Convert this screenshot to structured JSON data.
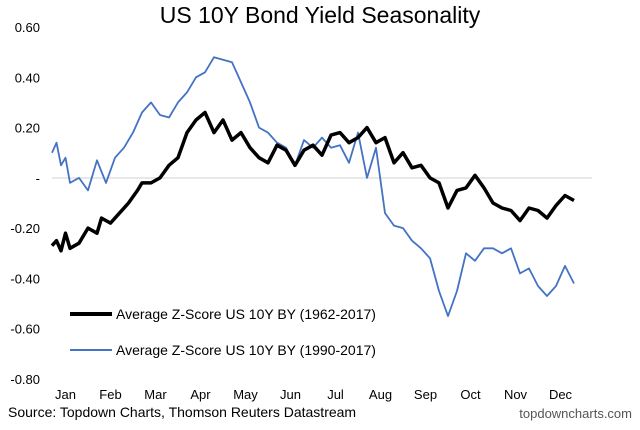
{
  "chart_data": {
    "type": "line",
    "title": "US 10Y Bond Yield Seasonality",
    "xlabel": "",
    "ylabel": "",
    "ylim": [
      -0.8,
      0.6
    ],
    "yticks": [
      {
        "value": 0.6,
        "label": "0.60"
      },
      {
        "value": 0.4,
        "label": "0.40"
      },
      {
        "value": 0.2,
        "label": "0.20"
      },
      {
        "value": 0.0,
        "label": "-"
      },
      {
        "value": -0.2,
        "label": "-0.20"
      },
      {
        "value": -0.4,
        "label": "-0.40"
      },
      {
        "value": -0.6,
        "label": "-0.60"
      },
      {
        "value": -0.8,
        "label": "-0.80"
      }
    ],
    "categories": [
      "Jan",
      "Feb",
      "Mar",
      "Apr",
      "May",
      "Jun",
      "Jul",
      "Aug",
      "Sep",
      "Oct",
      "Nov",
      "Dec"
    ],
    "legend_position": "bottom-left",
    "series": [
      {
        "name": "Average Z-Score US 10Y BY (1962-2017)",
        "color": "#000000",
        "x": [
          0.0,
          0.1,
          0.2,
          0.3,
          0.4,
          0.6,
          0.8,
          1.0,
          1.1,
          1.3,
          1.5,
          1.7,
          1.9,
          2.0,
          2.2,
          2.4,
          2.6,
          2.8,
          3.0,
          3.2,
          3.4,
          3.6,
          3.8,
          4.0,
          4.2,
          4.4,
          4.6,
          4.8,
          5.0,
          5.2,
          5.4,
          5.6,
          5.8,
          6.0,
          6.2,
          6.4,
          6.6,
          6.8,
          7.0,
          7.2,
          7.4,
          7.6,
          7.8,
          8.0,
          8.2,
          8.4,
          8.6,
          8.8,
          9.0,
          9.2,
          9.4,
          9.6,
          9.8,
          10.0,
          10.2,
          10.4,
          10.6,
          10.8,
          11.0,
          11.2,
          11.4,
          11.6
        ],
        "values": [
          -0.27,
          -0.25,
          -0.29,
          -0.22,
          -0.28,
          -0.26,
          -0.2,
          -0.22,
          -0.16,
          -0.18,
          -0.14,
          -0.1,
          -0.05,
          -0.02,
          -0.02,
          0.0,
          0.05,
          0.08,
          0.18,
          0.23,
          0.26,
          0.18,
          0.23,
          0.15,
          0.18,
          0.12,
          0.08,
          0.06,
          0.13,
          0.11,
          0.05,
          0.11,
          0.13,
          0.09,
          0.17,
          0.18,
          0.14,
          0.16,
          0.2,
          0.14,
          0.16,
          0.06,
          0.1,
          0.04,
          0.05,
          0.0,
          -0.02,
          -0.12,
          -0.05,
          -0.04,
          0.01,
          -0.04,
          -0.1,
          -0.12,
          -0.13,
          -0.17,
          -0.12,
          -0.13,
          -0.16,
          -0.11,
          -0.07,
          -0.09
        ]
      },
      {
        "name": "Average Z-Score US 10Y BY (1990-2017)",
        "color": "#4472C4",
        "x": [
          0.0,
          0.1,
          0.2,
          0.3,
          0.4,
          0.6,
          0.8,
          1.0,
          1.2,
          1.4,
          1.6,
          1.8,
          2.0,
          2.2,
          2.4,
          2.6,
          2.8,
          3.0,
          3.2,
          3.4,
          3.6,
          3.8,
          4.0,
          4.2,
          4.4,
          4.6,
          4.8,
          5.0,
          5.2,
          5.4,
          5.6,
          5.8,
          6.0,
          6.2,
          6.4,
          6.6,
          6.8,
          7.0,
          7.2,
          7.4,
          7.6,
          7.8,
          8.0,
          8.2,
          8.4,
          8.6,
          8.8,
          9.0,
          9.2,
          9.4,
          9.6,
          9.8,
          10.0,
          10.2,
          10.4,
          10.6,
          10.8,
          11.0,
          11.2,
          11.4,
          11.6
        ],
        "values": [
          0.1,
          0.14,
          0.05,
          0.08,
          -0.02,
          0.0,
          -0.05,
          0.07,
          -0.02,
          0.08,
          0.12,
          0.18,
          0.26,
          0.3,
          0.25,
          0.24,
          0.3,
          0.34,
          0.4,
          0.42,
          0.48,
          0.47,
          0.46,
          0.38,
          0.3,
          0.2,
          0.18,
          0.14,
          0.12,
          0.05,
          0.15,
          0.12,
          0.16,
          0.12,
          0.13,
          0.06,
          0.18,
          0.0,
          0.12,
          -0.14,
          -0.19,
          -0.2,
          -0.25,
          -0.28,
          -0.32,
          -0.45,
          -0.55,
          -0.45,
          -0.3,
          -0.33,
          -0.28,
          -0.28,
          -0.3,
          -0.28,
          -0.38,
          -0.36,
          -0.43,
          -0.47,
          -0.43,
          -0.35,
          -0.42
        ]
      }
    ]
  },
  "footer": {
    "source": "Source: Topdown Charts, Thomson Reuters Datastream",
    "site": "topdowncharts.com"
  }
}
